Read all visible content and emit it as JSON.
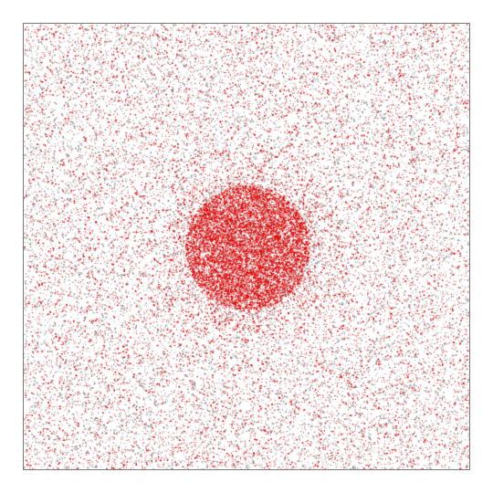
{
  "image": {
    "kind": "stippled-particle-field",
    "background_color": "#ffffff",
    "frame_color": "#7a7a7a",
    "gray_dot_color": "#8c8c8c",
    "red_dot_color": "#e00000",
    "pattern": {
      "background_noise": {
        "gray_fraction": 0.58,
        "red_fraction": 0.42
      },
      "central_cluster": {
        "color": "#e00000",
        "shape": "disc-gaussian"
      }
    }
  }
}
